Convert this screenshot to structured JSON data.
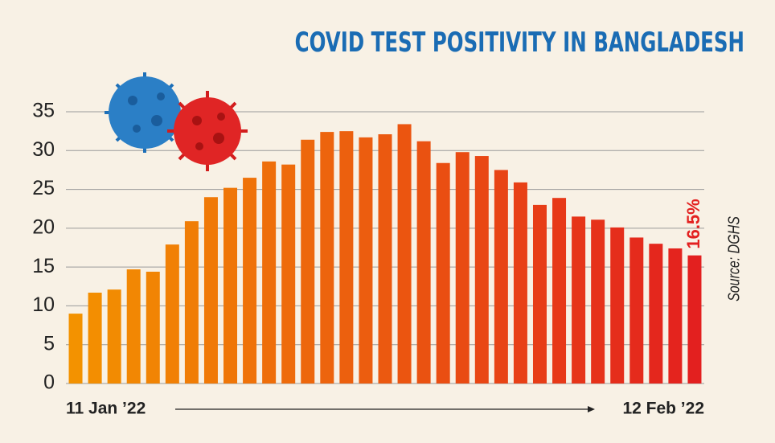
{
  "chart_data": {
    "type": "bar",
    "title": "COVID TEST POSITIVITY IN BANGLADESH",
    "source": "Source: DGHS",
    "categories": [
      "11 Jan ’22",
      null,
      null,
      null,
      null,
      null,
      null,
      null,
      null,
      null,
      null,
      null,
      null,
      null,
      null,
      null,
      null,
      null,
      null,
      null,
      null,
      null,
      null,
      null,
      null,
      null,
      null,
      null,
      null,
      null,
      null,
      null,
      "12 Feb ’22"
    ],
    "values": [
      9.0,
      11.7,
      12.1,
      14.7,
      14.4,
      17.9,
      20.9,
      24.0,
      25.2,
      26.5,
      28.6,
      28.2,
      31.4,
      32.4,
      32.5,
      31.7,
      32.1,
      33.4,
      31.2,
      28.4,
      29.8,
      29.3,
      27.5,
      25.9,
      23.0,
      23.9,
      21.5,
      21.1,
      20.1,
      18.8,
      18.0,
      17.4,
      16.5
    ],
    "value_labels": [
      null,
      null,
      null,
      null,
      null,
      null,
      null,
      null,
      null,
      null,
      null,
      null,
      null,
      null,
      null,
      null,
      null,
      null,
      null,
      null,
      null,
      null,
      null,
      null,
      null,
      null,
      null,
      null,
      null,
      null,
      null,
      null,
      "16.5%"
    ],
    "color_start": "#f39200",
    "color_end": "#e3201f",
    "ylim": [
      0,
      35
    ],
    "yticks": [
      0,
      5,
      10,
      15,
      20,
      25,
      30,
      35
    ],
    "grid": true
  }
}
